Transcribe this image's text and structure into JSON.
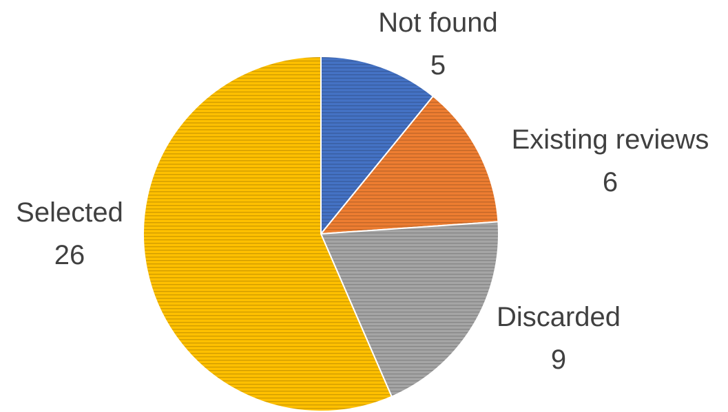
{
  "chart_data": {
    "type": "pie",
    "title": "",
    "start_angle_deg": 0,
    "direction": "clockwise",
    "fill_pattern": "horizontal-stripes",
    "slices": [
      {
        "label": "Not found",
        "value": 5,
        "color": "#4472c4"
      },
      {
        "label": "Existing reviews",
        "value": 6,
        "color": "#ed7d31"
      },
      {
        "label": "Discarded",
        "value": 9,
        "color": "#a5a5a5"
      },
      {
        "label": "Selected",
        "value": 26,
        "color": "#ffc000"
      }
    ]
  }
}
